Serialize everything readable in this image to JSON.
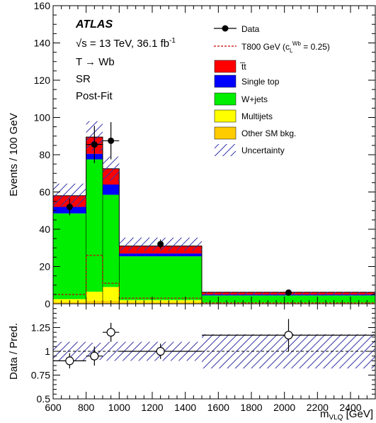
{
  "chart_data": [
    {
      "type": "bar",
      "panel": "main",
      "title": "",
      "xlabel_main": "m",
      "xlabel_sub": "VLQ",
      "xlabel_unit": " [GeV]",
      "ylabel": "Events / 100 GeV",
      "xlim": [
        600,
        2550
      ],
      "ylim": [
        0,
        160
      ],
      "x_ticks": [
        600,
        800,
        1000,
        1200,
        1400,
        1600,
        1800,
        2000,
        2200,
        2400
      ],
      "x_tick_labels": [
        "600",
        "800",
        "1000",
        "1200",
        "1400",
        "1600",
        "1800",
        "2000",
        "2200",
        "2400"
      ],
      "y_ticks": [
        0,
        20,
        40,
        60,
        80,
        100,
        120,
        140,
        160
      ],
      "y_tick_labels": [
        "0",
        "20",
        "40",
        "60",
        "80",
        "100",
        "120",
        "140",
        "160"
      ],
      "bins": [
        [
          600,
          800
        ],
        [
          800,
          900
        ],
        [
          900,
          1000
        ],
        [
          1000,
          1500
        ],
        [
          1500,
          2550
        ]
      ],
      "stack": [
        {
          "name": "Other SM bkg.",
          "color": "#ffcc00",
          "values": [
            1.0,
            1.5,
            1.5,
            1.0,
            0.3
          ]
        },
        {
          "name": "Multijets",
          "color": "#ffff00",
          "values": [
            1.5,
            5.0,
            7.5,
            1.0,
            0.2
          ]
        },
        {
          "name": "W+jets",
          "color": "#00ee00",
          "values": [
            46.0,
            71.0,
            49.5,
            23.5,
            4.0
          ]
        },
        {
          "name": "Single top",
          "color": "#0000ff",
          "values": [
            3.5,
            3.0,
            5.5,
            1.5,
            0.5
          ]
        },
        {
          "name": "t̅t",
          "color": "#ff0000",
          "values": [
            6.0,
            9.0,
            8.5,
            4.0,
            1.2
          ]
        }
      ],
      "uncertainty": {
        "name": "Uncertainty",
        "down": [
          52.5,
          82.0,
          66.0,
          28.5,
          4.3
        ],
        "up": [
          64.5,
          98.0,
          79.0,
          35.5,
          6.2
        ]
      },
      "signal": {
        "name": "T800 GeV (c",
        "name_sup": "Wb",
        "name_sub": "L",
        "name_tail": " = 0.25)",
        "color": "#cc0000",
        "values": [
          5.0,
          26.0,
          11.0,
          3.0,
          0.5
        ]
      },
      "data": {
        "name": "Data",
        "x": [
          700,
          850,
          950,
          1250,
          2025
        ],
        "y": [
          52,
          85.5,
          87.5,
          32,
          6
        ],
        "err": [
          4.5,
          10,
          10,
          2.5,
          1
        ],
        "xerr": [
          100,
          50,
          50,
          250,
          525
        ]
      },
      "annotations": {
        "experiment": "ATLAS",
        "line1": "√s = 13 TeV, 36.1 fb",
        "line1_sup": "-1",
        "line2": "T → Wb",
        "line3": "SR",
        "line4": "Post-Fit"
      }
    },
    {
      "type": "scatter",
      "panel": "ratio",
      "ylabel": "Data / Pred.",
      "ylim": [
        0.5,
        1.5
      ],
      "y_ticks": [
        0.5,
        0.75,
        1,
        1.25
      ],
      "y_tick_labels": [
        "0.5",
        "0.75",
        "1",
        "1.25"
      ],
      "x": [
        700,
        850,
        950,
        1250,
        2025
      ],
      "y": [
        0.9,
        0.95,
        1.2,
        1.0,
        1.17
      ],
      "err": [
        0.08,
        0.1,
        0.1,
        0.08,
        0.17
      ],
      "uncertainty_down": [
        0.9,
        0.91,
        0.9,
        0.9,
        0.82
      ],
      "uncertainty_up": [
        1.1,
        1.09,
        1.1,
        1.1,
        1.18
      ],
      "reference_line": 1
    }
  ]
}
